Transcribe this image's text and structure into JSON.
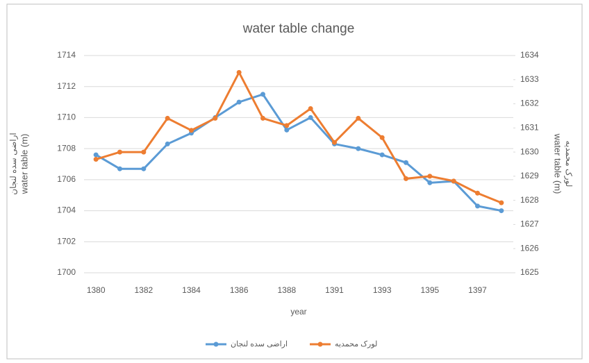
{
  "chart_data": {
    "type": "line",
    "title": "water table change",
    "xlabel": "year",
    "ylabel": [
      "اراضی سده لنجان",
      "water table (m)"
    ],
    "y2label": [
      "water table (m)",
      "لورک محمدیه"
    ],
    "categories": [
      "1380",
      null,
      "1382",
      null,
      "1384",
      null,
      "1386",
      null,
      "1388",
      null,
      "1391",
      null,
      "1393",
      null,
      "1395",
      null,
      "1397",
      null
    ],
    "series": [
      {
        "name": "اراضی سده لنجان",
        "color": "#5b9bd5",
        "values": [
          1707.6,
          1706.7,
          1706.7,
          1708.3,
          1709.0,
          1710.0,
          1711.0,
          1711.5,
          1709.2,
          1710.0,
          1708.3,
          1708.0,
          1707.6,
          1707.1,
          1705.8,
          1705.9,
          1704.3,
          1704.0
        ]
      },
      {
        "name": "لورک محمدیه",
        "color": "#ed7d31",
        "axis": "y2",
        "values": [
          1629.7,
          1630.0,
          1630.0,
          1631.4,
          1630.9,
          1631.4,
          1633.3,
          1631.4,
          1631.1,
          1631.8,
          1630.4,
          1631.4,
          1630.6,
          1628.9,
          1629.0,
          1628.8,
          1628.3,
          1627.9
        ]
      }
    ],
    "ylim": [
      1700,
      1714
    ],
    "yticks": [
      1700,
      1702,
      1704,
      1706,
      1708,
      1710,
      1712,
      1714
    ],
    "y2lim": [
      1625,
      1634
    ],
    "y2ticks": [
      1625,
      1626,
      1627,
      1628,
      1629,
      1630,
      1631,
      1632,
      1633,
      1634
    ],
    "grid": true,
    "legend": "bottom"
  }
}
